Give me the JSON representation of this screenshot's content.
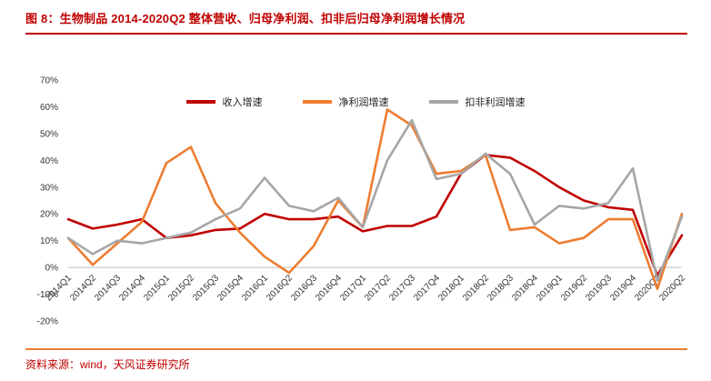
{
  "header": {
    "title": "图 8：生物制品 2014-2020Q2 整体营收、归母净利润、扣非后归母净利润增长情况"
  },
  "footer": {
    "source": "资料来源：wind，天风证券研究所"
  },
  "colors": {
    "accent": "#C00000",
    "secondary": "#ED7D31",
    "revenue_line": "#C00000",
    "net_profit_line": "#ED7D31",
    "non_recurring_line": "#A6A6A6",
    "axis_line": "#BFBFBF",
    "tick_text": "#333333"
  },
  "chart_data": {
    "type": "line",
    "title": "生物制品 2014-2020Q2 整体营收、归母净利润、扣非后归母净利润增长情况",
    "xlabel": "",
    "ylabel": "",
    "ylim": [
      -20,
      70
    ],
    "ytick_step": 10,
    "ytick_format": "percent",
    "grid": false,
    "legend_position": "top-center",
    "categories": [
      "2014Q1",
      "2014Q2",
      "2014Q3",
      "2014Q4",
      "2015Q1",
      "2015Q2",
      "2015Q3",
      "2015Q4",
      "2016Q1",
      "2016Q2",
      "2016Q3",
      "2016Q4",
      "2017Q1",
      "2017Q2",
      "2017Q3",
      "2017Q4",
      "2018Q1",
      "2018Q2",
      "2018Q3",
      "2018Q4",
      "2019Q1",
      "2019Q2",
      "2019Q3",
      "2019Q4",
      "2020Q1",
      "2020Q2"
    ],
    "series": [
      {
        "id": "revenue-growth",
        "name": "收入增速",
        "color": "#C00000",
        "values": [
          18,
          14.5,
          16,
          18,
          11,
          12,
          14,
          14.5,
          20,
          18,
          18,
          19,
          13.5,
          15.5,
          15.5,
          19,
          35,
          42,
          41,
          36,
          30,
          25,
          22.5,
          21.5,
          -3,
          12
        ]
      },
      {
        "id": "net-profit-growth",
        "name": "净利润增速",
        "color": "#ED7D31",
        "values": [
          11,
          1,
          9,
          17,
          39,
          45,
          24,
          13,
          4,
          -2,
          8,
          25,
          15,
          59,
          53,
          35,
          36,
          42,
          14,
          15,
          9,
          11,
          18,
          18,
          -8,
          20
        ]
      },
      {
        "id": "non-recurring-profit-growth",
        "name": "扣非利润增速",
        "color": "#A6A6A6",
        "values": [
          11,
          5,
          10,
          9,
          11,
          13,
          18,
          22,
          33.5,
          23,
          21,
          26,
          15,
          40,
          55,
          33,
          35,
          42.5,
          35,
          16,
          23,
          22,
          24,
          37,
          -5,
          19
        ]
      }
    ]
  }
}
